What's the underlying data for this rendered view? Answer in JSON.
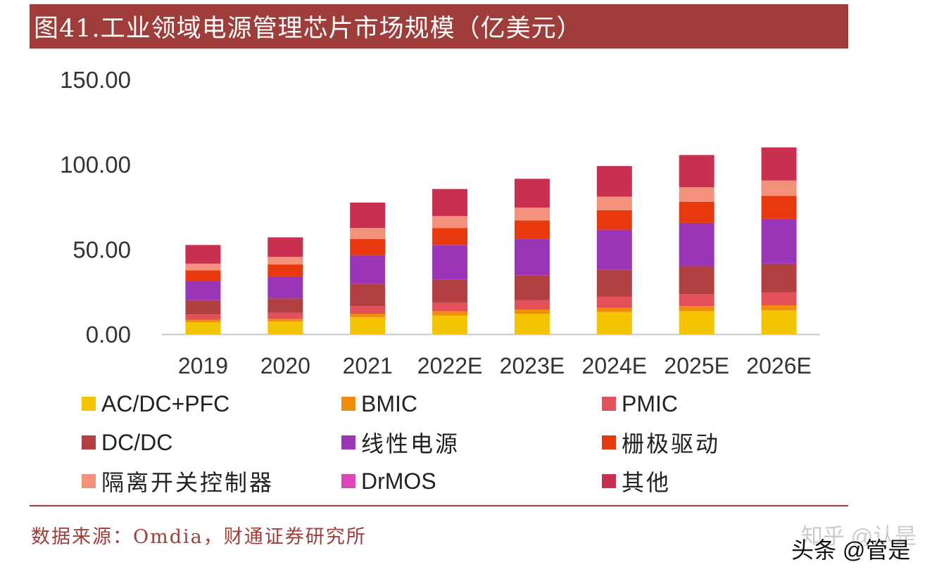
{
  "title": "图41.工业领域电源管理芯片市场规模（亿美元）",
  "chart_data": {
    "type": "bar",
    "stacked": true,
    "title": "图41.工业领域电源管理芯片市场规模（亿美元）",
    "categories": [
      "2019",
      "2020",
      "2021",
      "2022E",
      "2023E",
      "2024E",
      "2025E",
      "2026E"
    ],
    "ylim": [
      0,
      150
    ],
    "yticks": [
      "0.00",
      "50.00",
      "100.00",
      "150.00"
    ],
    "ytick_values": [
      0,
      50,
      100,
      150
    ],
    "grid": false,
    "legend_position": "bottom",
    "series": [
      {
        "name": "AC/DC+PFC",
        "color": "#f5c400",
        "values": [
          7,
          7.5,
          10,
          11,
          12,
          13,
          13.5,
          14
        ]
      },
      {
        "name": "BMIC",
        "color": "#f28c0c",
        "values": [
          1.5,
          1.5,
          2,
          2.5,
          2.5,
          2.5,
          3,
          3
        ]
      },
      {
        "name": "PMIC",
        "color": "#e4505a",
        "values": [
          3,
          3.5,
          4.5,
          5,
          5.5,
          6.5,
          7,
          7.5
        ]
      },
      {
        "name": "DC/DC",
        "color": "#b24040",
        "values": [
          8.5,
          8.5,
          13,
          13.5,
          14.5,
          16,
          16.5,
          17
        ]
      },
      {
        "name": "线性电源",
        "color": "#9b36b8",
        "values": [
          11.5,
          13,
          17,
          20.5,
          21.5,
          23.5,
          25.5,
          26.5
        ]
      },
      {
        "name": "栅极驱动",
        "color": "#e8390e",
        "values": [
          6,
          7,
          9.5,
          10,
          11,
          11.5,
          12.5,
          13.5
        ]
      },
      {
        "name": "隔离开关控制器",
        "color": "#f4917a",
        "values": [
          4,
          4.5,
          6.5,
          7,
          7.5,
          8,
          8.5,
          9
        ]
      },
      {
        "name": "DrMOS",
        "color": "#d946ba",
        "values": [
          0,
          0,
          0,
          0,
          0,
          0,
          0,
          0
        ]
      },
      {
        "name": "其他",
        "color": "#c92f4e",
        "values": [
          11,
          11.5,
          15,
          16,
          17,
          18,
          19,
          19.5
        ]
      }
    ]
  },
  "legend": {
    "items": [
      {
        "label": "AC/DC+PFC",
        "color": "#f5c400"
      },
      {
        "label": "BMIC",
        "color": "#f28c0c"
      },
      {
        "label": "PMIC",
        "color": "#e4505a"
      },
      {
        "label": "DC/DC",
        "color": "#b24040"
      },
      {
        "label": "线性电源",
        "color": "#9b36b8"
      },
      {
        "label": "栅极驱动",
        "color": "#e8390e"
      },
      {
        "label": "隔离开关控制器",
        "color": "#f4917a"
      },
      {
        "label": "DrMOS",
        "color": "#d946ba"
      },
      {
        "label": "其他",
        "color": "#c92f4e"
      }
    ]
  },
  "source": "数据来源：Omdia，财通证券研究所",
  "watermark": {
    "zhihu": "知乎 @认是",
    "toutiao": "头条 @管是"
  }
}
